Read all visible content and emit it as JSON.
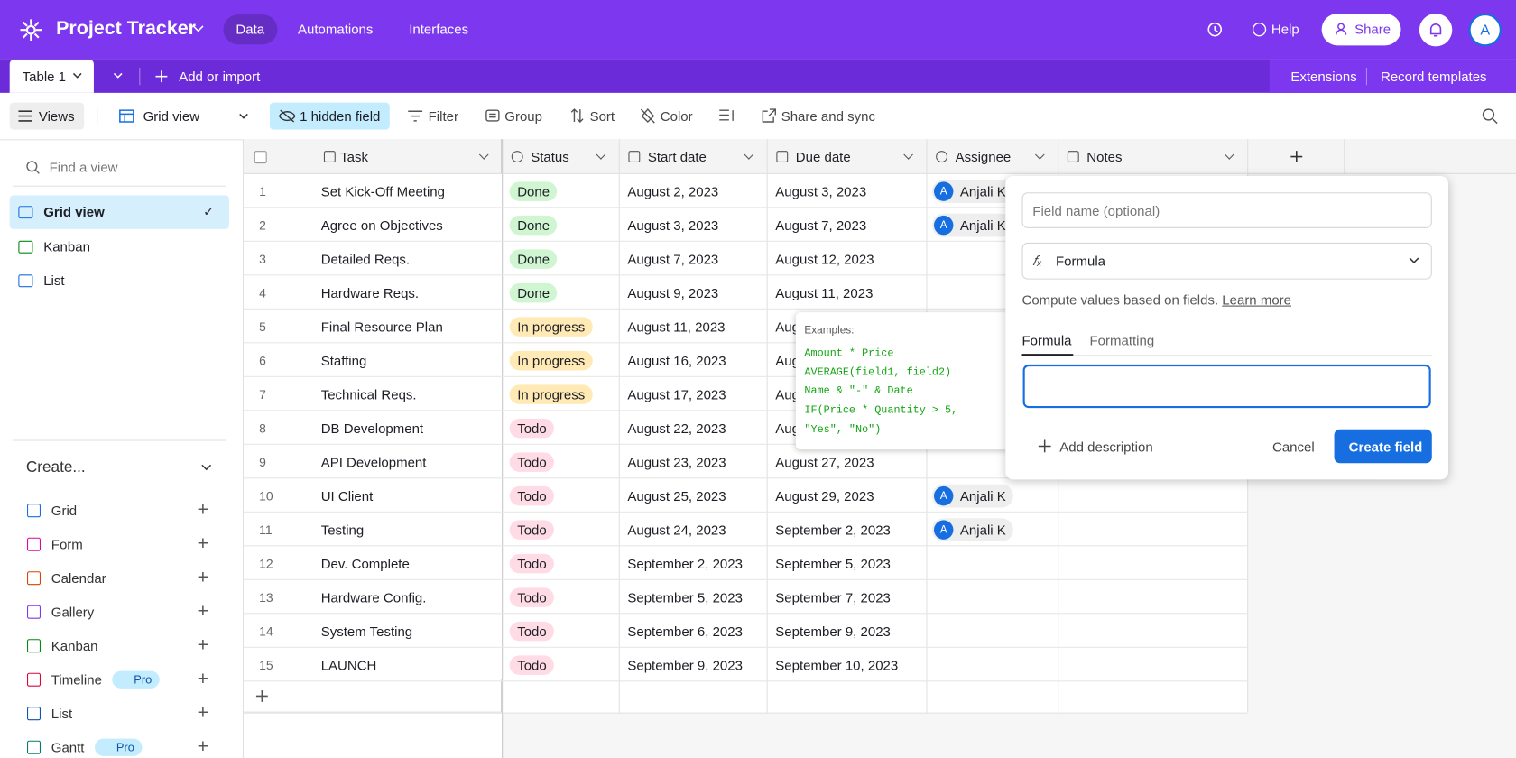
{
  "header": {
    "brand": "Project Tracker",
    "nav": [
      "Data",
      "Automations",
      "Interfaces"
    ],
    "help": "Help",
    "share": "Share",
    "avatar": "A"
  },
  "tabs": {
    "table": "Table 1",
    "add": "Add or import",
    "extensions": "Extensions",
    "record_templates": "Record templates"
  },
  "toolbar": {
    "views": "Views",
    "grid_view": "Grid view",
    "hidden": "1 hidden field",
    "filter": "Filter",
    "group": "Group",
    "sort": "Sort",
    "color": "Color",
    "share_sync": "Share and sync"
  },
  "sidebar": {
    "search": "Find a view",
    "views": [
      "Grid view",
      "Kanban",
      "List"
    ],
    "create": "Create...",
    "create_items": [
      {
        "label": "Grid",
        "color": "#166ee1"
      },
      {
        "label": "Form",
        "color": "#dd04a8"
      },
      {
        "label": "Calendar",
        "color": "#d54401"
      },
      {
        "label": "Gallery",
        "color": "#7c37ef"
      },
      {
        "label": "Kanban",
        "color": "#048a0e"
      },
      {
        "label": "Timeline",
        "color": "#dc043b",
        "badge": "Pro"
      },
      {
        "label": "List",
        "color": "#0d52ac"
      },
      {
        "label": "Gantt",
        "color": "#067a6f",
        "badge": "Pro"
      }
    ]
  },
  "grid": {
    "columns": [
      "Task",
      "Status",
      "Start date",
      "Due date",
      "Assignee",
      "Notes"
    ],
    "status_colors": {
      "Done": "#cff5d1",
      "In progress": "#ffeab6",
      "Todo": "#ffdce5"
    },
    "rows": [
      {
        "num": 1,
        "task": "Set Kick-Off Meeting",
        "status": "Done",
        "start": "August 2, 2023",
        "due": "August 3, 2023",
        "assignee": {
          "initial": "A",
          "name": "Anjali K"
        }
      },
      {
        "num": 2,
        "task": "Agree on Objectives",
        "status": "Done",
        "start": "August 3, 2023",
        "due": "August 7, 2023",
        "assignee": {
          "initial": "A",
          "name": "Anjali K"
        }
      },
      {
        "num": 3,
        "task": "Detailed Reqs.",
        "status": "Done",
        "start": "August 7, 2023",
        "due": "August 12, 2023",
        "assignee": null
      },
      {
        "num": 4,
        "task": "Hardware Reqs.",
        "status": "Done",
        "start": "August 9, 2023",
        "due": "August 11, 2023",
        "assignee": null
      },
      {
        "num": 5,
        "task": "Final Resource Plan",
        "status": "In progress",
        "start": "August 11, 2023",
        "due": "Aug",
        "assignee": null
      },
      {
        "num": 6,
        "task": "Staffing",
        "status": "In progress",
        "start": "August 16, 2023",
        "due": "Aug",
        "assignee": null
      },
      {
        "num": 7,
        "task": "Technical Reqs.",
        "status": "In progress",
        "start": "August 17, 2023",
        "due": "Aug",
        "assignee": null
      },
      {
        "num": 8,
        "task": "DB Development",
        "status": "Todo",
        "start": "August 22, 2023",
        "due": "Aug",
        "assignee": null
      },
      {
        "num": 9,
        "task": "API Development",
        "status": "Todo",
        "start": "August 23, 2023",
        "due": "August 27, 2023",
        "assignee": null
      },
      {
        "num": 10,
        "task": "UI Client",
        "status": "Todo",
        "start": "August 25, 2023",
        "due": "August 29, 2023",
        "assignee": {
          "initial": "A",
          "name": "Anjali K"
        }
      },
      {
        "num": 11,
        "task": "Testing",
        "status": "Todo",
        "start": "August 24, 2023",
        "due": "September 2, 2023",
        "assignee": {
          "initial": "A",
          "name": "Anjali K"
        }
      },
      {
        "num": 12,
        "task": "Dev. Complete",
        "status": "Todo",
        "start": "September 2, 2023",
        "due": "September 5, 2023",
        "assignee": null
      },
      {
        "num": 13,
        "task": "Hardware Config.",
        "status": "Todo",
        "start": "September 5, 2023",
        "due": "September 7, 2023",
        "assignee": null
      },
      {
        "num": 14,
        "task": "System Testing",
        "status": "Todo",
        "start": "September 6, 2023",
        "due": "September 9, 2023",
        "assignee": null
      },
      {
        "num": 15,
        "task": "LAUNCH",
        "status": "Todo",
        "start": "September 9, 2023",
        "due": "September 10, 2023",
        "assignee": null
      }
    ]
  },
  "tooltip": {
    "title": "Examples:",
    "lines": [
      "Amount * Price",
      "AVERAGE(field1, field2)",
      "Name & \"-\" & Date",
      "IF(Price * Quantity > 5,",
      "\"Yes\", \"No\")"
    ]
  },
  "field_popup": {
    "name_placeholder": "Field name (optional)",
    "type": "Formula",
    "description": "Compute values based on fields.",
    "learn_more": "Learn more",
    "tabs": [
      "Formula",
      "Formatting"
    ],
    "add_description": "Add description",
    "cancel": "Cancel",
    "create": "Create field"
  }
}
